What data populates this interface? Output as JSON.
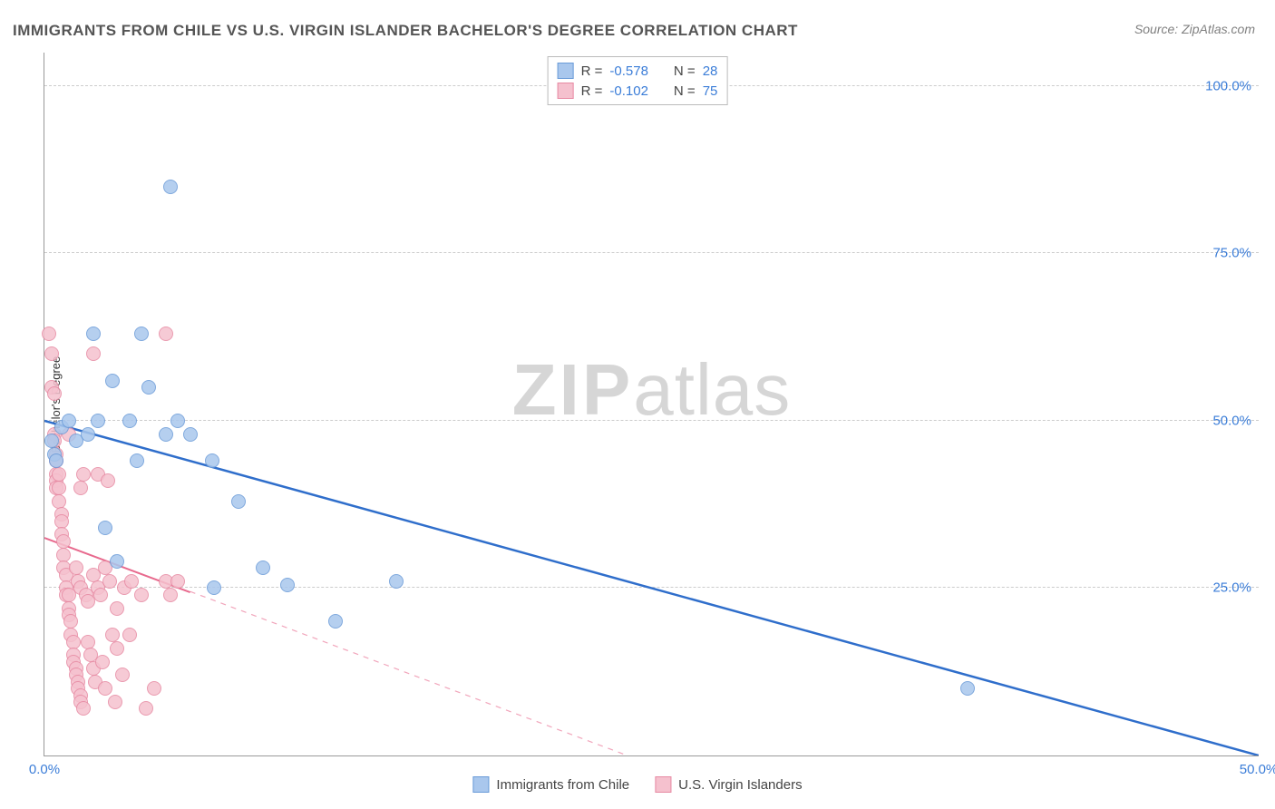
{
  "title": "IMMIGRANTS FROM CHILE VS U.S. VIRGIN ISLANDER BACHELOR'S DEGREE CORRELATION CHART",
  "source": "Source: ZipAtlas.com",
  "y_axis_label": "Bachelor's Degree",
  "watermark": {
    "zip": "ZIP",
    "atlas": "atlas"
  },
  "chart": {
    "type": "scatter",
    "xlim": [
      0,
      50
    ],
    "ylim": [
      0,
      105
    ],
    "x_ticks": [
      {
        "value": 0,
        "label": "0.0%"
      },
      {
        "value": 50,
        "label": "50.0%"
      }
    ],
    "y_ticks": [
      {
        "value": 25,
        "label": "25.0%"
      },
      {
        "value": 50,
        "label": "50.0%"
      },
      {
        "value": 75,
        "label": "75.0%"
      },
      {
        "value": 100,
        "label": "100.0%"
      }
    ],
    "gridlines_y": [
      25,
      50,
      75,
      100
    ],
    "background_color": "#ffffff",
    "grid_color": "#cccccc",
    "axis_color": "#999999",
    "tick_label_color": "#3b7dd8",
    "marker_radius": 8,
    "marker_stroke_width": 1.2,
    "marker_fill_opacity": 0.35,
    "series": [
      {
        "id": "chile",
        "name": "Immigrants from Chile",
        "color_fill": "#a9c7ed",
        "color_stroke": "#6a9bd8",
        "R": "-0.578",
        "N": "28",
        "trend": {
          "x1": 0,
          "y1": 50,
          "x2": 50,
          "y2": 0,
          "width": 2.5,
          "dash": "none",
          "color": "#2f6ecb"
        },
        "points": [
          [
            0.3,
            47
          ],
          [
            0.4,
            45
          ],
          [
            0.5,
            44
          ],
          [
            0.7,
            49
          ],
          [
            1.0,
            50
          ],
          [
            1.3,
            47
          ],
          [
            1.8,
            48
          ],
          [
            2.0,
            63
          ],
          [
            2.2,
            50
          ],
          [
            2.5,
            34
          ],
          [
            2.8,
            56
          ],
          [
            3.0,
            29
          ],
          [
            3.5,
            50
          ],
          [
            3.8,
            44
          ],
          [
            4.0,
            63
          ],
          [
            4.3,
            55
          ],
          [
            5.0,
            48
          ],
          [
            5.2,
            85
          ],
          [
            5.5,
            50
          ],
          [
            6.0,
            48
          ],
          [
            6.9,
            44
          ],
          [
            7.0,
            25
          ],
          [
            8.0,
            38
          ],
          [
            9.0,
            28
          ],
          [
            10.0,
            25.5
          ],
          [
            12.0,
            20
          ],
          [
            14.5,
            26
          ],
          [
            38.0,
            10
          ]
        ]
      },
      {
        "id": "usvi",
        "name": "U.S. Virgin Islanders",
        "color_fill": "#f5c1ce",
        "color_stroke": "#e78aa3",
        "R": "-0.102",
        "N": "75",
        "trend": {
          "x1": 0,
          "y1": 32.5,
          "x2": 24,
          "y2": 0,
          "width": 2,
          "dash": "none",
          "dash_ext": {
            "x1": 6,
            "y1": 24.5,
            "x2": 24,
            "y2": 0,
            "dash": "6 6"
          },
          "color": "#e86a8e"
        },
        "points": [
          [
            0.2,
            63
          ],
          [
            0.3,
            60
          ],
          [
            0.3,
            55
          ],
          [
            0.4,
            54
          ],
          [
            0.4,
            48
          ],
          [
            0.4,
            47
          ],
          [
            0.5,
            45
          ],
          [
            0.5,
            44
          ],
          [
            0.5,
            42
          ],
          [
            0.5,
            41
          ],
          [
            0.5,
            40
          ],
          [
            0.6,
            40
          ],
          [
            0.6,
            42
          ],
          [
            0.6,
            38
          ],
          [
            0.7,
            36
          ],
          [
            0.7,
            35
          ],
          [
            0.7,
            33
          ],
          [
            0.8,
            32
          ],
          [
            0.8,
            30
          ],
          [
            0.8,
            28
          ],
          [
            0.9,
            27
          ],
          [
            0.9,
            25
          ],
          [
            0.9,
            24
          ],
          [
            1.0,
            24
          ],
          [
            1.0,
            22
          ],
          [
            1.0,
            21
          ],
          [
            1.1,
            20
          ],
          [
            1.1,
            18
          ],
          [
            1.2,
            17
          ],
          [
            1.2,
            15
          ],
          [
            1.2,
            14
          ],
          [
            1.3,
            13
          ],
          [
            1.3,
            12
          ],
          [
            1.4,
            11
          ],
          [
            1.4,
            10
          ],
          [
            1.5,
            9
          ],
          [
            1.5,
            8
          ],
          [
            1.6,
            7
          ],
          [
            1.3,
            28
          ],
          [
            1.4,
            26
          ],
          [
            1.5,
            25
          ],
          [
            1.5,
            40
          ],
          [
            1.6,
            42
          ],
          [
            1.7,
            24
          ],
          [
            1.8,
            23
          ],
          [
            1.8,
            17
          ],
          [
            1.9,
            15
          ],
          [
            2.0,
            27
          ],
          [
            2.0,
            13
          ],
          [
            2.1,
            11
          ],
          [
            2.2,
            42
          ],
          [
            2.2,
            25
          ],
          [
            2.3,
            24
          ],
          [
            2.4,
            14
          ],
          [
            2.5,
            10
          ],
          [
            2.5,
            28
          ],
          [
            2.6,
            41
          ],
          [
            2.7,
            26
          ],
          [
            2.8,
            18
          ],
          [
            2.9,
            8
          ],
          [
            3.0,
            22
          ],
          [
            3.0,
            16
          ],
          [
            3.2,
            12
          ],
          [
            3.3,
            25
          ],
          [
            3.5,
            18
          ],
          [
            3.6,
            26
          ],
          [
            4.0,
            24
          ],
          [
            4.2,
            7
          ],
          [
            4.5,
            10
          ],
          [
            5.0,
            26
          ],
          [
            5.2,
            24
          ],
          [
            5.5,
            26
          ],
          [
            5.0,
            63
          ],
          [
            2.0,
            60
          ],
          [
            1.0,
            48
          ]
        ]
      }
    ]
  },
  "stats_legend": {
    "rows": [
      {
        "swatch_fill": "#a9c7ed",
        "swatch_stroke": "#6a9bd8",
        "r_label": "R =",
        "r_val": "-0.578",
        "n_label": "N =",
        "n_val": "28"
      },
      {
        "swatch_fill": "#f5c1ce",
        "swatch_stroke": "#e78aa3",
        "r_label": "R =",
        "r_val": "-0.102",
        "n_label": "N =",
        "n_val": "75"
      }
    ]
  },
  "bottom_legend": {
    "items": [
      {
        "swatch_fill": "#a9c7ed",
        "swatch_stroke": "#6a9bd8",
        "label": "Immigrants from Chile"
      },
      {
        "swatch_fill": "#f5c1ce",
        "swatch_stroke": "#e78aa3",
        "label": "U.S. Virgin Islanders"
      }
    ]
  }
}
